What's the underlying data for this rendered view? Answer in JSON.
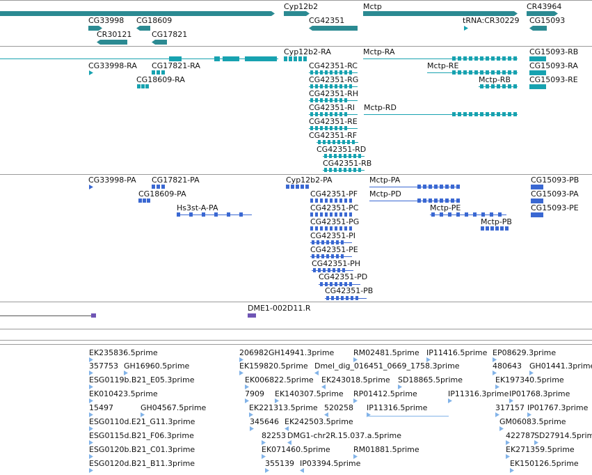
{
  "colors": {
    "gene": "#2b8a92",
    "transcript": "#17a2b0",
    "protein": "#3a68d2",
    "clone": "#6f55b5",
    "est": "#82b3e8",
    "separator": "#9a9a9a"
  },
  "tracks": {
    "genes": {
      "labels": [
        "Cyp12b2",
        "Mctp",
        "CR43964",
        "CG33998",
        "CG18609",
        "CG42351",
        "tRNA:CR30229",
        "CG15093",
        "CR30121",
        "CG17821"
      ]
    },
    "transcripts": {
      "labels": [
        "Cyp12b2-RA",
        "Mctp-RA",
        "CG15093-RB",
        "CG33998-RA",
        "CG17821-RA",
        "CG42351-RC",
        "Mctp-RE",
        "CG15093-RA",
        "CG18609-RA",
        "CG42351-RG",
        "Mctp-RB",
        "CG15093-RE",
        "CG42351-RH",
        "CG42351-RI",
        "Mctp-RD",
        "CG42351-RE",
        "CG42351-RF",
        "CG42351-RD",
        "CG42351-RB"
      ]
    },
    "proteins": {
      "labels": [
        "CG33998-PA",
        "CG17821-PA",
        "Cyp12b2-PA",
        "Mctp-PA",
        "CG15093-PB",
        "CG18609-PA",
        "CG42351-PF",
        "Mctp-PD",
        "CG15093-PA",
        "Hs3st-A-PA",
        "CG42351-PC",
        "Mctp-PE",
        "CG15093-PE",
        "CG42351-PG",
        "Mctp-PB",
        "CG42351-PI",
        "CG42351-PE",
        "CG42351-PH",
        "CG42351-PD",
        "CG42351-PB"
      ]
    },
    "clones": {
      "labels": [
        "DME1-002D11.R"
      ]
    },
    "ests": {
      "labels": [
        "EK235836.5prime",
        "206982GH14941.3prime",
        "RM02481.5prime",
        "IP11416.5prime",
        "EP08629.3prime",
        "357753",
        "GH16960.5prime",
        "EK159820.5prime",
        "Dmel_dig_016451_0669_1758.3prime",
        "480643",
        "GH01441.3prime",
        "ESG0119b.B21_E05.3prime",
        "EK006822.5prime",
        "EK243018.5prime",
        "SD18865.5prime",
        "EK197340.5prime",
        "EK010423.5prime",
        "7909",
        "EK140307.5prime",
        "RP01412.5prime",
        "IP11316.3prime",
        "IP01768.3prime",
        "15497",
        "GH04567.5prime",
        "EK221313.5prime",
        "520258",
        "IP11316.5prime",
        "317157",
        "IP01767.3prime",
        "ESG0110d.E21_G11.3prime",
        "345646",
        "EK242503.5prime",
        "GM06083.5prime",
        "ESG0115d.B21_F06.3prime",
        "82253",
        "DMG1-chr2R.15.037.a.5prime",
        "422787",
        "SD27914.5prime",
        "ESG0120b.B21_C01.3prime",
        "EK071460.5prime",
        "RM01881.5prime",
        "EK271359.5prime",
        "ESG0120d.B21_B11.3prime",
        "355139",
        "IP03394.5prime",
        "EK150126.5prime"
      ]
    }
  }
}
